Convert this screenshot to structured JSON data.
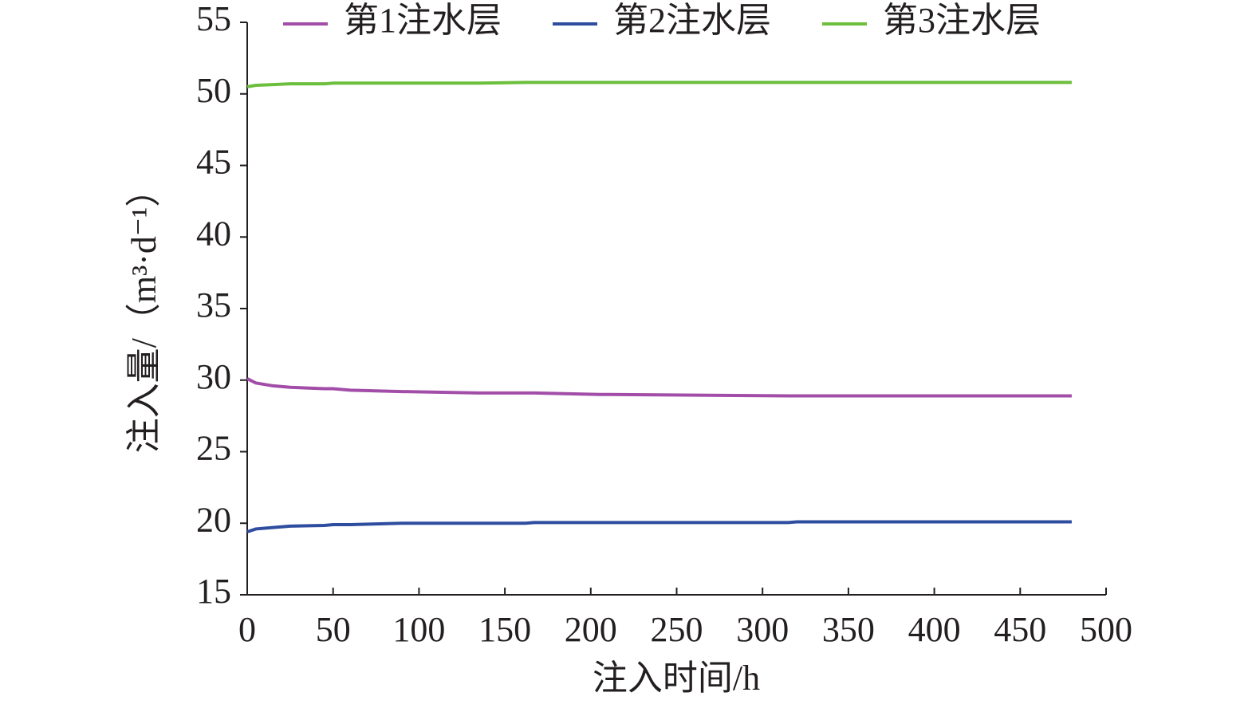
{
  "chart_data": {
    "type": "line",
    "x": [
      0,
      5,
      15,
      25,
      45,
      50,
      60,
      90,
      135,
      162,
      167,
      205,
      315,
      320,
      480
    ],
    "series": [
      {
        "name": "第1注水层",
        "color": "#a24ea8",
        "values": [
          30.1,
          29.8,
          29.6,
          29.5,
          29.4,
          29.4,
          29.3,
          29.2,
          29.1,
          29.1,
          29.1,
          29.0,
          28.9,
          28.9,
          28.9
        ]
      },
      {
        "name": "第2注水层",
        "color": "#2e4d9e",
        "values": [
          19.4,
          19.6,
          19.7,
          19.8,
          19.85,
          19.9,
          19.9,
          20.0,
          20.0,
          20.0,
          20.05,
          20.05,
          20.05,
          20.1,
          20.1
        ]
      },
      {
        "name": "第3注水层",
        "color": "#6cbf3d",
        "values": [
          50.5,
          50.6,
          50.65,
          50.7,
          50.7,
          50.75,
          50.75,
          50.75,
          50.75,
          50.8,
          50.8,
          50.8,
          50.8,
          50.8,
          50.8
        ]
      }
    ],
    "xlabel": "注入时间/h",
    "ylabel": "注入量/（m³·d⁻¹）",
    "xlim": [
      0,
      500
    ],
    "xticks": [
      0,
      50,
      100,
      150,
      200,
      250,
      300,
      350,
      400,
      450,
      500
    ],
    "ylim": [
      15,
      55
    ],
    "yticks": [
      15,
      20,
      25,
      30,
      35,
      40,
      45,
      50,
      55
    ],
    "grid": false,
    "legend": "top"
  }
}
